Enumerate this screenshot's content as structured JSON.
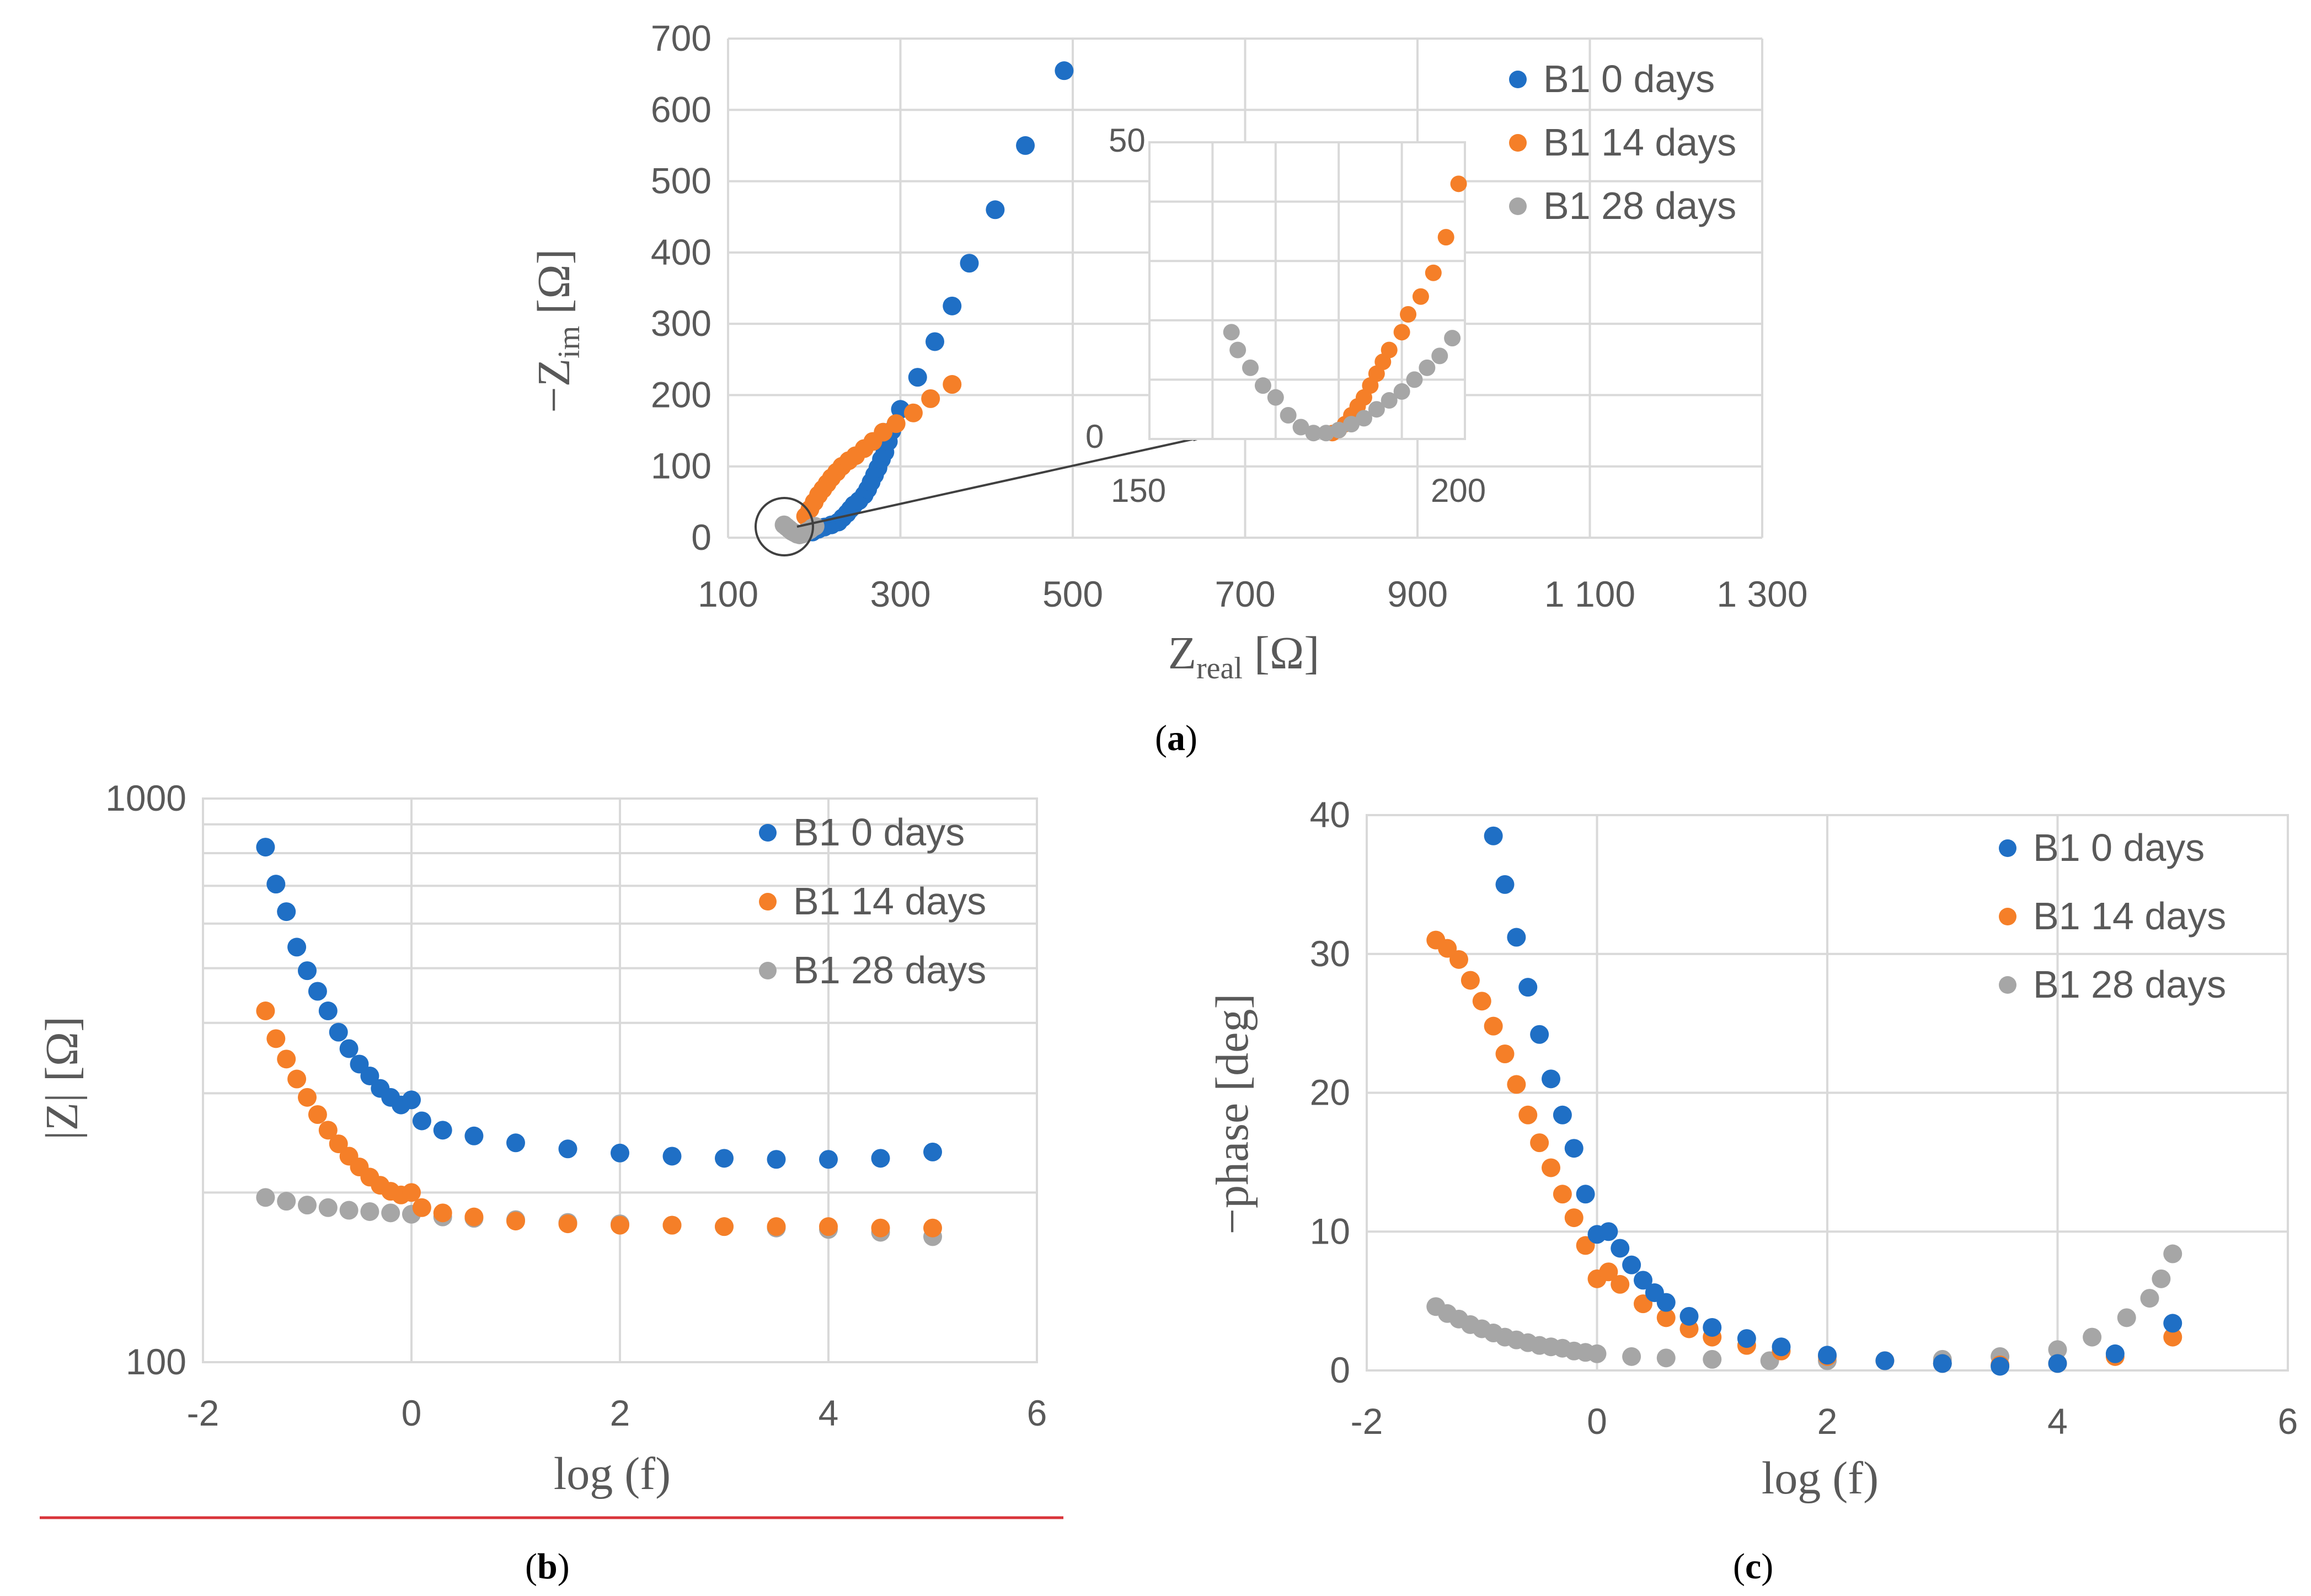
{
  "colors": {
    "s0": "#1f6fc5",
    "s14": "#f57f28",
    "s28": "#a6a6a6",
    "rule": "#d9343a"
  },
  "panels": {
    "a": {
      "label": "a"
    },
    "b": {
      "label": "b"
    },
    "c": {
      "label": "c"
    }
  },
  "chart_data": [
    {
      "id": "a",
      "type": "scatter",
      "xlabel_main": "Z",
      "xlabel_sub": "real",
      "xlabel_unit": " [Ω]",
      "ylabel_pre": "−Z",
      "ylabel_sub": "im",
      "ylabel_unit": " [Ω]",
      "xlim": [
        100,
        1300
      ],
      "ylim": [
        0,
        700
      ],
      "xticks": [
        100,
        300,
        500,
        700,
        900,
        1100,
        1300
      ],
      "xtick_labels": [
        "100",
        "300",
        "500",
        "700",
        "900",
        "1 100",
        "1 300"
      ],
      "yticks": [
        0,
        100,
        200,
        300,
        400,
        500,
        600,
        700
      ],
      "ytick_labels": [
        "0",
        "100",
        "200",
        "300",
        "400",
        "500",
        "600",
        "700"
      ],
      "legend": [
        "B1 0 days",
        "B1 14 days",
        "B1 28 days"
      ],
      "legend_position": "top-right",
      "grid": true,
      "inset": {
        "xlim": [
          150,
          200
        ],
        "ylim": [
          0,
          50
        ],
        "tick_labels": {
          "x_min": "150",
          "x_max": "200",
          "y_min": "0",
          "y_max": "50"
        },
        "series": [
          {
            "x": [
              179,
              180,
              181,
              182,
              183,
              184,
              185,
              186,
              187,
              188,
              190,
              191,
              193,
              195,
              197,
              199
            ],
            "y": [
              1,
              1.5,
              2.5,
              4,
              5.5,
              7,
              9,
              11,
              13,
              15,
              18,
              21,
              24,
              28,
              34,
              43
            ]
          },
          {
            "x": [
              163,
              164,
              166,
              168,
              170,
              172,
              174,
              176,
              178,
              180,
              182,
              184,
              186,
              188,
              190,
              192,
              194,
              196,
              198
            ],
            "y": [
              18,
              15,
              12,
              9,
              7,
              4,
              2,
              1,
              1,
              1.5,
              2.5,
              3.5,
              5,
              6.5,
              8,
              10,
              12,
              14,
              17
            ]
          }
        ]
      },
      "series": [
        {
          "x": [
            198,
            205,
            212,
            220,
            228,
            233,
            238,
            242,
            246,
            252,
            258,
            262,
            266,
            270,
            274,
            278,
            282,
            286,
            290,
            300,
            320,
            340,
            360,
            380,
            410,
            445,
            490
          ],
          "y": [
            8,
            12,
            15,
            18,
            22,
            28,
            34,
            40,
            46,
            52,
            60,
            68,
            78,
            88,
            98,
            110,
            120,
            135,
            150,
            180,
            225,
            275,
            325,
            385,
            460,
            550,
            655
          ]
        },
        {
          "x": [
            190,
            195,
            200,
            205,
            210,
            215,
            220,
            226,
            232,
            240,
            248,
            258,
            268,
            280,
            295,
            315,
            335,
            360
          ],
          "y": [
            30,
            40,
            50,
            60,
            68,
            76,
            84,
            92,
            100,
            108,
            115,
            125,
            135,
            148,
            160,
            175,
            195,
            215
          ]
        },
        {
          "x": [
            165,
            168,
            171,
            174,
            177,
            180,
            183,
            186,
            189,
            192,
            195,
            198,
            201
          ],
          "y": [
            18,
            15,
            12,
            9,
            7,
            5,
            4,
            5,
            7,
            9,
            11,
            14,
            16
          ]
        }
      ]
    },
    {
      "id": "b",
      "type": "scatter",
      "xlabel": "log (f)",
      "ylabel": "|Z| [Ω]",
      "xlim": [
        -2,
        6
      ],
      "ylim": [
        100,
        1000
      ],
      "yscale": "log",
      "xticks": [
        -2,
        0,
        2,
        4,
        6
      ],
      "xtick_labels": [
        "-2",
        "0",
        "2",
        "4",
        "6"
      ],
      "yticks": [
        100,
        1000
      ],
      "ytick_labels": [
        "100",
        "1000"
      ],
      "legend": [
        "B1 0 days",
        "B1 14 days",
        "B1 28 days"
      ],
      "legend_position": "top-right",
      "grid": true,
      "series": [
        {
          "x": [
            -1.4,
            -1.3,
            -1.2,
            -1.1,
            -1.0,
            -0.9,
            -0.8,
            -0.7,
            -0.6,
            -0.5,
            -0.4,
            -0.3,
            -0.2,
            -0.1,
            0.0,
            0.1,
            0.3,
            0.6,
            1.0,
            1.5,
            2.0,
            2.5,
            3.0,
            3.5,
            4.0,
            4.5,
            5.0
          ],
          "y": [
            820,
            705,
            630,
            545,
            495,
            455,
            420,
            385,
            360,
            338,
            322,
            306,
            295,
            286,
            292,
            268,
            258,
            252,
            245,
            239,
            235,
            232,
            230,
            229,
            229,
            230,
            236
          ]
        },
        {
          "x": [
            -1.4,
            -1.3,
            -1.2,
            -1.1,
            -1.0,
            -0.9,
            -0.8,
            -0.7,
            -0.6,
            -0.5,
            -0.4,
            -0.3,
            -0.2,
            -0.1,
            0.0,
            0.1,
            0.3,
            0.6,
            1.0,
            1.5,
            2.0,
            2.5,
            3.0,
            3.5,
            4.0,
            4.5,
            5.0
          ],
          "y": [
            420,
            375,
            345,
            318,
            295,
            275,
            258,
            244,
            232,
            222,
            213,
            206,
            201,
            198,
            200,
            188,
            184,
            181,
            178,
            176,
            175,
            175,
            174,
            174,
            174,
            173,
            173
          ]
        },
        {
          "x": [
            -1.4,
            -1.2,
            -1.0,
            -0.8,
            -0.6,
            -0.4,
            -0.2,
            0.0,
            0.3,
            0.6,
            1.0,
            1.5,
            2.0,
            2.5,
            3.0,
            3.5,
            4.0,
            4.5,
            5.0
          ],
          "y": [
            196,
            193,
            190,
            188,
            186,
            185,
            184,
            183,
            181,
            180,
            179,
            177,
            176,
            175,
            174,
            173,
            172,
            170,
            167
          ]
        }
      ]
    },
    {
      "id": "c",
      "type": "scatter",
      "xlabel": "log (f)",
      "ylabel": "−phase [deg]",
      "xlim": [
        -2,
        6
      ],
      "ylim": [
        0,
        40
      ],
      "xticks": [
        -2,
        0,
        2,
        4,
        6
      ],
      "xtick_labels": [
        "-2",
        "0",
        "2",
        "4",
        "6"
      ],
      "yticks": [
        0,
        10,
        20,
        30,
        40
      ],
      "ytick_labels": [
        "0",
        "10",
        "20",
        "30",
        "40"
      ],
      "legend": [
        "B1 0 days",
        "B1 14 days",
        "B1 28 days"
      ],
      "legend_position": "top-right",
      "grid": true,
      "series": [
        {
          "x": [
            -0.9,
            -0.8,
            -0.7,
            -0.6,
            -0.5,
            -0.4,
            -0.3,
            -0.2,
            -0.1,
            0.0,
            0.1,
            0.2,
            0.3,
            0.4,
            0.5,
            0.6,
            0.8,
            1.0,
            1.3,
            1.6,
            2.0,
            2.5,
            3.0,
            3.5,
            4.0,
            4.5,
            5.0
          ],
          "y": [
            38.5,
            35,
            31.2,
            27.6,
            24.2,
            21,
            18.4,
            16,
            12.7,
            9.8,
            10,
            8.8,
            7.6,
            6.5,
            5.6,
            4.9,
            3.9,
            3.1,
            2.3,
            1.7,
            1.1,
            0.7,
            0.5,
            0.3,
            0.5,
            1.2,
            3.4
          ]
        },
        {
          "x": [
            -1.4,
            -1.3,
            -1.2,
            -1.1,
            -1.0,
            -0.9,
            -0.8,
            -0.7,
            -0.6,
            -0.5,
            -0.4,
            -0.3,
            -0.2,
            -0.1,
            0.0,
            0.1,
            0.2,
            0.4,
            0.6,
            0.8,
            1.0,
            1.3,
            1.6,
            2.0,
            2.5,
            3.0,
            3.5,
            4.0,
            4.5,
            5.0
          ],
          "y": [
            31,
            30.4,
            29.6,
            28.1,
            26.6,
            24.8,
            22.8,
            20.6,
            18.4,
            16.4,
            14.6,
            12.7,
            11,
            9,
            6.6,
            7.1,
            6.2,
            4.8,
            3.8,
            3.0,
            2.4,
            1.8,
            1.4,
            1.0,
            0.7,
            0.5,
            0.4,
            0.5,
            1.0,
            2.4
          ]
        },
        {
          "x": [
            -1.4,
            -1.3,
            -1.2,
            -1.1,
            -1.0,
            -0.9,
            -0.8,
            -0.7,
            -0.6,
            -0.5,
            -0.4,
            -0.3,
            -0.2,
            -0.1,
            0.0,
            0.3,
            0.6,
            1.0,
            1.5,
            2.0,
            2.5,
            3.0,
            3.5,
            4.0,
            4.3,
            4.6,
            4.8,
            4.9,
            5.0
          ],
          "y": [
            4.6,
            4.1,
            3.7,
            3.3,
            3.0,
            2.7,
            2.4,
            2.2,
            2.0,
            1.8,
            1.7,
            1.6,
            1.4,
            1.3,
            1.2,
            1.0,
            0.9,
            0.8,
            0.7,
            0.7,
            0.7,
            0.8,
            1.0,
            1.5,
            2.4,
            3.8,
            5.2,
            6.6,
            8.4
          ]
        }
      ]
    }
  ]
}
